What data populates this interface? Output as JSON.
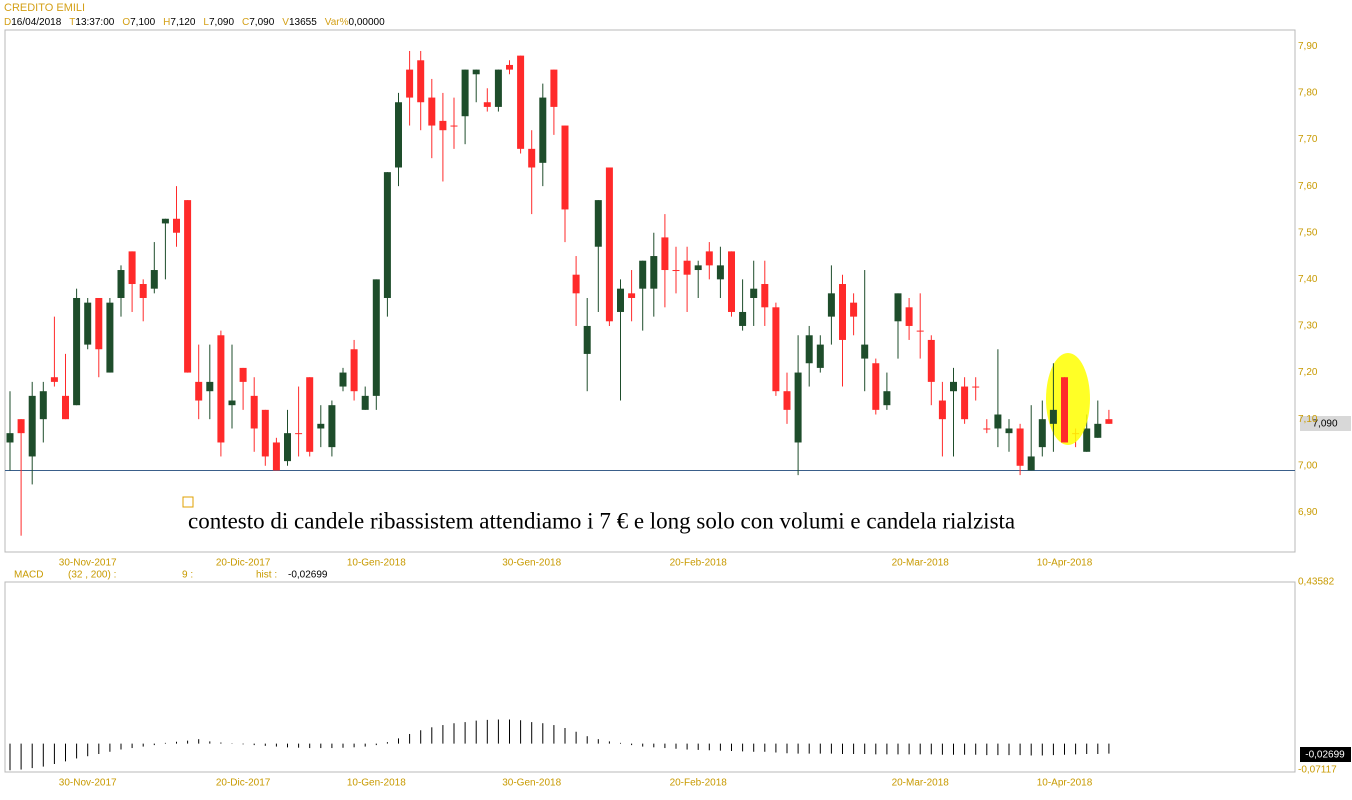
{
  "chart_data": [
    {
      "type": "candlestick",
      "title": "CREDITO EMILI",
      "fields": [
        {
          "key": "D",
          "value": "16/04/2018"
        },
        {
          "key": "T",
          "value": "13:37:00"
        },
        {
          "key": "O",
          "value": "7,100"
        },
        {
          "key": "H",
          "value": "7,120"
        },
        {
          "key": "L",
          "value": "7,090"
        },
        {
          "key": "C",
          "value": "7,090"
        },
        {
          "key": "V",
          "value": "13655"
        },
        {
          "key": "Var%",
          "value": "0,00000"
        }
      ],
      "annotation": "contesto di candele ribassistem attendiamo i 7 € e long solo con volumi e candela rialzista",
      "last_price_label": "7,090",
      "hline": 6.99,
      "up_color": "#1e4d2b",
      "down_color": "#ff2a2a",
      "categories": [
        null,
        null,
        null,
        null,
        null,
        null,
        null,
        "30-Nov-2017",
        null,
        null,
        null,
        null,
        null,
        null,
        null,
        null,
        null,
        null,
        null,
        null,
        null,
        "20-Dic-2017",
        null,
        null,
        null,
        null,
        null,
        null,
        null,
        null,
        null,
        null,
        null,
        "10-Gen-2018",
        null,
        null,
        null,
        null,
        null,
        null,
        null,
        null,
        null,
        null,
        null,
        null,
        null,
        "30-Gen-2018",
        null,
        null,
        null,
        null,
        null,
        null,
        null,
        null,
        null,
        null,
        null,
        null,
        null,
        null,
        "20-Feb-2018",
        null,
        null,
        null,
        null,
        null,
        null,
        null,
        null,
        null,
        null,
        null,
        null,
        null,
        null,
        null,
        null,
        null,
        null,
        null,
        "20-Mar-2018",
        null,
        null,
        null,
        null,
        null,
        null,
        null,
        null,
        null,
        null,
        null,
        null,
        "10-Apr-2018",
        null,
        null,
        null,
        null
      ],
      "open": [
        7.05,
        7.1,
        7.02,
        7.1,
        7.19,
        7.15,
        7.13,
        7.26,
        7.36,
        7.2,
        7.36,
        7.46,
        7.39,
        7.38,
        7.52,
        7.53,
        7.57,
        7.18,
        7.16,
        7.28,
        7.13,
        7.21,
        7.15,
        7.12,
        7.05,
        7.01,
        7.07,
        7.19,
        7.08,
        7.04,
        7.17,
        7.25,
        7.12,
        7.15,
        7.36,
        7.64,
        7.85,
        7.87,
        7.79,
        7.74,
        7.73,
        7.75,
        7.84,
        7.78,
        7.77,
        7.86,
        7.88,
        7.68,
        7.65,
        7.85,
        7.73,
        7.41,
        7.24,
        7.47,
        7.64,
        7.33,
        7.37,
        7.38,
        7.38,
        7.49,
        7.42,
        7.44,
        7.42,
        7.46,
        7.4,
        7.46,
        7.3,
        7.36,
        7.39,
        7.34,
        7.16,
        7.05,
        7.22,
        7.21,
        7.32,
        7.39,
        7.35,
        7.23,
        7.22,
        7.13,
        7.31,
        7.34,
        7.29,
        7.27,
        7.14,
        7.16,
        7.17,
        7.17,
        7.08,
        7.08,
        7.07,
        7.08,
        6.99,
        7.04,
        7.09,
        7.19,
        7.07,
        7.03,
        7.06,
        7.1
      ],
      "high": [
        7.16,
        7.1,
        7.18,
        7.18,
        7.32,
        7.24,
        7.38,
        7.36,
        7.36,
        7.36,
        7.43,
        7.46,
        7.4,
        7.48,
        7.53,
        7.6,
        7.57,
        7.26,
        7.26,
        7.29,
        7.26,
        7.21,
        7.19,
        7.12,
        7.06,
        7.12,
        7.17,
        7.19,
        7.13,
        7.14,
        7.21,
        7.27,
        7.17,
        7.4,
        7.63,
        7.8,
        7.89,
        7.89,
        7.83,
        7.8,
        7.79,
        7.85,
        7.85,
        7.81,
        7.85,
        7.87,
        7.88,
        7.72,
        7.82,
        7.85,
        7.73,
        7.45,
        7.36,
        7.57,
        7.64,
        7.4,
        7.42,
        7.44,
        7.5,
        7.54,
        7.47,
        7.47,
        7.44,
        7.48,
        7.47,
        7.46,
        7.4,
        7.44,
        7.44,
        7.35,
        7.2,
        7.28,
        7.3,
        7.28,
        7.43,
        7.41,
        7.37,
        7.42,
        7.23,
        7.2,
        7.37,
        7.36,
        7.37,
        7.28,
        7.18,
        7.21,
        7.19,
        7.19,
        7.1,
        7.25,
        7.1,
        7.09,
        7.13,
        7.14,
        7.22,
        7.19,
        7.08,
        7.11,
        7.14,
        7.12
      ],
      "low": [
        6.99,
        6.85,
        6.96,
        7.05,
        7.17,
        7.1,
        7.13,
        7.25,
        7.19,
        7.2,
        7.32,
        7.33,
        7.31,
        7.37,
        7.4,
        7.47,
        7.2,
        7.1,
        7.1,
        7.02,
        7.08,
        7.12,
        7.03,
        7.0,
        6.99,
        7.0,
        7.02,
        7.02,
        7.04,
        7.02,
        7.16,
        7.14,
        7.12,
        7.12,
        7.32,
        7.6,
        7.73,
        7.72,
        7.66,
        7.61,
        7.68,
        7.69,
        7.78,
        7.76,
        7.76,
        7.84,
        7.67,
        7.54,
        7.6,
        7.71,
        7.48,
        7.3,
        7.16,
        7.33,
        7.3,
        7.14,
        7.31,
        7.29,
        7.32,
        7.34,
        7.37,
        7.33,
        7.36,
        7.4,
        7.36,
        7.32,
        7.29,
        7.3,
        7.3,
        7.15,
        7.09,
        6.98,
        7.17,
        7.2,
        7.26,
        7.17,
        7.28,
        7.16,
        7.11,
        7.12,
        7.23,
        7.27,
        7.23,
        7.13,
        7.02,
        7.02,
        7.09,
        7.14,
        7.07,
        7.04,
        7.03,
        6.98,
        6.99,
        7.02,
        7.03,
        7.05,
        7.04,
        7.03,
        7.06,
        7.09
      ],
      "close": [
        7.07,
        7.07,
        7.15,
        7.16,
        7.18,
        7.1,
        7.36,
        7.35,
        7.25,
        7.35,
        7.42,
        7.39,
        7.36,
        7.42,
        7.53,
        7.5,
        7.2,
        7.14,
        7.18,
        7.05,
        7.14,
        7.18,
        7.08,
        7.02,
        6.99,
        7.07,
        7.07,
        7.03,
        7.09,
        7.13,
        7.2,
        7.16,
        7.15,
        7.4,
        7.63,
        7.78,
        7.79,
        7.78,
        7.73,
        7.72,
        7.73,
        7.85,
        7.85,
        7.77,
        7.85,
        7.85,
        7.68,
        7.64,
        7.79,
        7.77,
        7.55,
        7.37,
        7.3,
        7.57,
        7.31,
        7.38,
        7.36,
        7.44,
        7.45,
        7.42,
        7.42,
        7.41,
        7.43,
        7.43,
        7.43,
        7.33,
        7.33,
        7.38,
        7.34,
        7.16,
        7.12,
        7.2,
        7.28,
        7.26,
        7.37,
        7.27,
        7.32,
        7.26,
        7.12,
        7.16,
        7.37,
        7.3,
        7.29,
        7.18,
        7.1,
        7.18,
        7.1,
        7.17,
        7.08,
        7.11,
        7.08,
        7.0,
        7.02,
        7.1,
        7.12,
        7.05,
        7.07,
        7.08,
        7.09,
        7.09
      ],
      "ylim": [
        6.815,
        7.935
      ],
      "yticks": [
        {
          "value": 6.9,
          "label": "6,90"
        },
        {
          "value": 7.0,
          "label": "7,00"
        },
        {
          "value": 7.1,
          "label": "7,10"
        },
        {
          "value": 7.2,
          "label": "7,20"
        },
        {
          "value": 7.3,
          "label": "7,30"
        },
        {
          "value": 7.4,
          "label": "7,40"
        },
        {
          "value": 7.5,
          "label": "7,50"
        },
        {
          "value": 7.6,
          "label": "7,60"
        },
        {
          "value": 7.7,
          "label": "7,70"
        },
        {
          "value": 7.8,
          "label": "7,80"
        },
        {
          "value": 7.9,
          "label": "7,90"
        }
      ]
    },
    {
      "type": "histogram_lines",
      "name": "MACD",
      "params": "(32 , 200) :",
      "signal": "9 :",
      "hist_key": "hist :",
      "hist_value": "-0,02699",
      "color": "#000000",
      "values": [
        -0.072,
        -0.07,
        -0.066,
        -0.062,
        -0.055,
        -0.048,
        -0.04,
        -0.034,
        -0.028,
        -0.022,
        -0.016,
        -0.012,
        -0.008,
        -0.004,
        0.002,
        0.005,
        0.008,
        0.012,
        0.006,
        0.003,
        0.001,
        -0.002,
        -0.004,
        -0.006,
        -0.008,
        -0.01,
        -0.011,
        -0.012,
        -0.012,
        -0.012,
        -0.011,
        -0.01,
        -0.008,
        -0.004,
        0.004,
        0.014,
        0.026,
        0.036,
        0.044,
        0.05,
        0.055,
        0.058,
        0.062,
        0.064,
        0.065,
        0.065,
        0.063,
        0.058,
        0.055,
        0.05,
        0.042,
        0.032,
        0.02,
        0.012,
        0.006,
        0.002,
        -0.004,
        -0.008,
        -0.01,
        -0.012,
        -0.014,
        -0.016,
        -0.017,
        -0.018,
        -0.019,
        -0.02,
        -0.021,
        -0.022,
        -0.022,
        -0.024,
        -0.026,
        -0.027,
        -0.027,
        -0.027,
        -0.027,
        -0.028,
        -0.028,
        -0.028,
        -0.029,
        -0.029,
        -0.029,
        -0.029,
        -0.029,
        -0.029,
        -0.03,
        -0.03,
        -0.03,
        -0.03,
        -0.031,
        -0.031,
        -0.031,
        -0.031,
        -0.032,
        -0.032,
        -0.031,
        -0.03,
        -0.029,
        -0.028,
        -0.028,
        -0.02699
      ],
      "ylim": [
        -0.07117,
        0.43582
      ],
      "yticks": [
        {
          "value": 0.43582,
          "label": "0,43582"
        },
        {
          "value": -0.07117,
          "label": "-0,07117"
        }
      ]
    }
  ]
}
